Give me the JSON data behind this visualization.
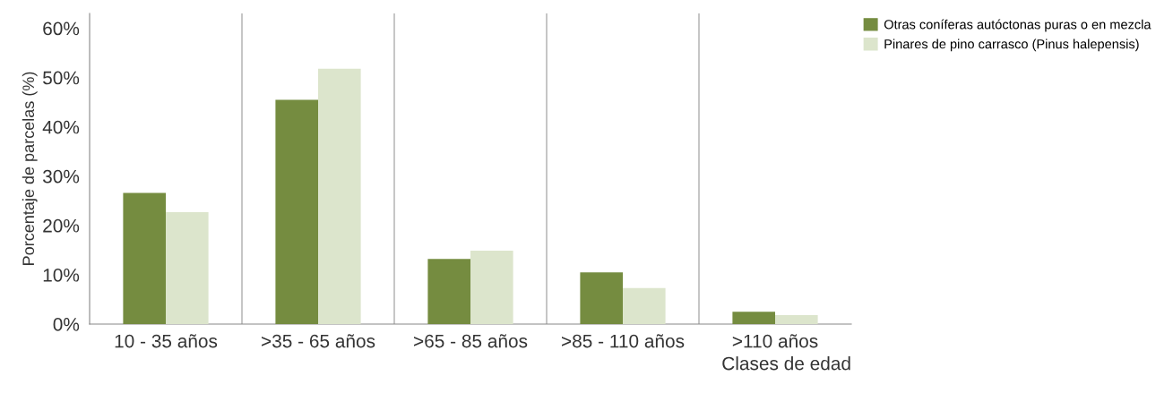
{
  "chart_data": {
    "type": "bar",
    "xlabel": "Clases de edad",
    "ylabel": "Porcentaje de parcelas (%)",
    "categories": [
      "10 - 35 años",
      ">35 - 65 años",
      ">65 - 85 años",
      ">85 - 110 años",
      ">110 años"
    ],
    "series": [
      {
        "name": "Otras coníferas autóctonas puras o en mezcla",
        "color": "#758c40",
        "values": [
          26.6,
          45.5,
          13.2,
          10.5,
          2.5
        ]
      },
      {
        "name": "Pinares de pino carrasco (Pinus halepensis)",
        "color": "#dce5cc",
        "values": [
          22.7,
          51.8,
          14.9,
          7.3,
          1.8
        ]
      }
    ],
    "ylim": [
      0,
      63
    ],
    "yticks": [
      {
        "value": 0,
        "label": "0%"
      },
      {
        "value": 10,
        "label": "10%"
      },
      {
        "value": 20,
        "label": "20%"
      },
      {
        "value": 30,
        "label": "30%"
      },
      {
        "value": 40,
        "label": "40%"
      },
      {
        "value": 50,
        "label": "50%"
      },
      {
        "value": 60,
        "label": "60%"
      }
    ],
    "grid": "x",
    "legend": "right"
  }
}
